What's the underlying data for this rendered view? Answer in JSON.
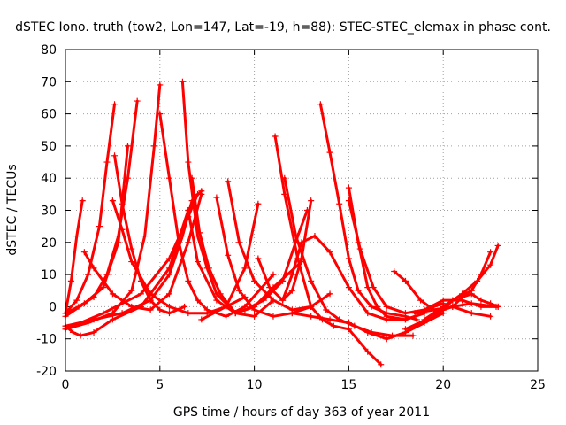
{
  "chart_data": {
    "type": "scatter",
    "title": "dSTEC Iono. truth (tow2, Lon=147, Lat=-19, h=88): STEC-STEC_elemax in phase cont.",
    "xlabel": "GPS time / hours of day 363 of year 2011",
    "ylabel": "dSTEC  / TECUs",
    "xlim": [
      0,
      25
    ],
    "ylim": [
      -20,
      80
    ],
    "xticks": [
      0,
      5,
      10,
      15,
      20,
      25
    ],
    "yticks": [
      -20,
      -10,
      0,
      10,
      20,
      30,
      40,
      50,
      60,
      70,
      80
    ],
    "grid": true,
    "marker": "plus",
    "color": "#ff0000",
    "series": [
      {
        "x": [
          0.0,
          0.3,
          0.6,
          0.9
        ],
        "y": [
          -2,
          8,
          22,
          33
        ]
      },
      {
        "x": [
          0.0,
          0.6,
          1.2,
          1.8,
          2.2,
          2.6
        ],
        "y": [
          -2,
          2,
          10,
          25,
          45,
          63
        ]
      },
      {
        "x": [
          0.0,
          0.7,
          1.5,
          2.2,
          2.8,
          3.3,
          3.8
        ],
        "y": [
          -2,
          0,
          3,
          10,
          22,
          40,
          64
        ]
      },
      {
        "x": [
          0.0,
          1.0,
          2.0,
          2.8,
          3.3
        ],
        "y": [
          -3,
          1,
          6,
          20,
          50
        ]
      },
      {
        "x": [
          0.0,
          1.2,
          2.5,
          3.5,
          4.2,
          4.7,
          5.0
        ],
        "y": [
          -7,
          -5,
          -2,
          5,
          22,
          50,
          69
        ]
      },
      {
        "x": [
          0.0,
          1.5,
          3.0,
          4.5,
          5.5,
          6.2,
          6.7,
          7.2
        ],
        "y": [
          -6,
          -4,
          -2,
          2,
          10,
          22,
          33,
          36
        ]
      },
      {
        "x": [
          0.0,
          2.0,
          4.0,
          5.5,
          6.5,
          7.0
        ],
        "y": [
          -7,
          -2,
          4,
          15,
          28,
          35
        ]
      },
      {
        "x": [
          0.0,
          0.4,
          0.8,
          1.5,
          2.5,
          4.0,
          5.5,
          6.5
        ],
        "y": [
          -6,
          -8,
          -9,
          -8,
          -4,
          0,
          12,
          30
        ]
      },
      {
        "x": [
          1.0,
          1.5,
          2.5,
          3.5,
          4.5,
          5.5,
          6.5,
          7.2
        ],
        "y": [
          17,
          12,
          4,
          0,
          -1,
          4,
          20,
          35
        ]
      },
      {
        "x": [
          2.6,
          3.0,
          3.5,
          4.0,
          4.5,
          5.0,
          5.5,
          6.3
        ],
        "y": [
          47,
          32,
          18,
          8,
          2,
          -1,
          -2,
          0
        ]
      },
      {
        "x": [
          2.5,
          3.0,
          3.5,
          4.5,
          5.5,
          6.5,
          7.5,
          8.5,
          9.5
        ],
        "y": [
          33,
          24,
          14,
          4,
          0,
          -2,
          -2,
          0,
          3
        ]
      },
      {
        "x": [
          5.0,
          5.5,
          6.0,
          6.5,
          7.0,
          7.5,
          8.5,
          9.5,
          11.0
        ],
        "y": [
          60,
          40,
          20,
          8,
          2,
          -1,
          -3,
          0,
          10
        ]
      },
      {
        "x": [
          6.2,
          6.5,
          7.0,
          7.5,
          8.0,
          9.0,
          10.0
        ],
        "y": [
          70,
          45,
          22,
          12,
          4,
          -2,
          0
        ]
      },
      {
        "x": [
          6.7,
          7.1,
          7.6,
          8.2,
          9.0,
          10.0,
          11.0
        ],
        "y": [
          40,
          23,
          12,
          4,
          -2,
          -3,
          2
        ]
      },
      {
        "x": [
          6.5,
          7.0,
          8.0,
          9.0,
          10.0,
          11.0,
          12.5
        ],
        "y": [
          30,
          14,
          2,
          -2,
          0,
          6,
          14
        ]
      },
      {
        "x": [
          8.0,
          8.6,
          9.2,
          10.0,
          11.0,
          12.0,
          13.0,
          14.0
        ],
        "y": [
          34,
          16,
          5,
          -1,
          -3,
          -2,
          0,
          4
        ]
      },
      {
        "x": [
          8.6,
          9.2,
          10.0,
          11.0,
          12.0,
          13.0
        ],
        "y": [
          39,
          20,
          8,
          2,
          -1,
          0
        ]
      },
      {
        "x": [
          7.2,
          8.5,
          9.5,
          10.2
        ],
        "y": [
          -4,
          0,
          12,
          32
        ]
      },
      {
        "x": [
          10.2,
          10.8,
          11.5,
          12.0,
          12.5,
          13.0
        ],
        "y": [
          15,
          6,
          2,
          5,
          15,
          33
        ]
      },
      {
        "x": [
          9.5,
          10.5,
          11.5,
          12.3,
          12.8
        ],
        "y": [
          -1,
          2,
          8,
          22,
          30
        ]
      },
      {
        "x": [
          11.1,
          11.6,
          12.3,
          13.0,
          13.6,
          14.2,
          15.0,
          16.0,
          16.7
        ],
        "y": [
          53,
          35,
          15,
          0,
          -4,
          -6,
          -7,
          -14,
          -18
        ]
      },
      {
        "x": [
          11.6,
          12.2,
          13.0,
          13.8,
          14.5,
          15.3,
          16.2,
          17.3,
          18.4
        ],
        "y": [
          40,
          22,
          8,
          -1,
          -4,
          -6,
          -8,
          -9,
          -9
        ]
      },
      {
        "x": [
          11.5,
          12.0,
          12.5,
          13.2,
          14.0,
          15.0,
          16.0,
          17.0,
          18.0,
          19.0
        ],
        "y": [
          2,
          10,
          20,
          22,
          17,
          6,
          -2,
          -4,
          -4,
          -2
        ]
      },
      {
        "x": [
          13.5,
          14.0,
          14.5,
          15.0,
          15.5,
          16.2,
          17.0,
          18.0,
          18.6
        ],
        "y": [
          63,
          48,
          32,
          15,
          5,
          0,
          -2,
          -3,
          -4
        ]
      },
      {
        "x": [
          15.0,
          15.5,
          16.0,
          16.5,
          17.0,
          18.0,
          19.0
        ],
        "y": [
          37,
          20,
          6,
          0,
          -3,
          -4,
          -2
        ]
      },
      {
        "x": [
          15.0,
          15.6,
          16.3,
          17.0,
          18.0,
          19.0,
          20.0
        ],
        "y": [
          33,
          18,
          6,
          0,
          -2,
          -1,
          1
        ]
      },
      {
        "x": [
          12.0,
          13.0,
          14.0,
          15.0,
          16.0,
          17.0,
          18.0,
          19.0,
          20.0
        ],
        "y": [
          -2,
          -3,
          -4,
          -5,
          -8,
          -10,
          -8,
          -5,
          -2
        ]
      },
      {
        "x": [
          17.0,
          18.0,
          19.0,
          20.0,
          20.5
        ],
        "y": [
          -10,
          -8,
          -5,
          -1,
          2
        ]
      },
      {
        "x": [
          17.4,
          18.0,
          18.8,
          19.5,
          20.5,
          21.5,
          22.5
        ],
        "y": [
          11,
          8,
          2,
          -1,
          0,
          -2,
          -3
        ]
      },
      {
        "x": [
          18.5,
          19.5,
          20.5,
          21.5,
          22.8
        ],
        "y": [
          -2,
          -1,
          0,
          1,
          0
        ]
      },
      {
        "x": [
          19.0,
          20.0,
          21.0,
          21.8,
          22.5,
          22.9
        ],
        "y": [
          -4,
          0,
          4,
          8,
          13,
          19
        ]
      },
      {
        "x": [
          18.0,
          19.5,
          20.5,
          21.5,
          22.0,
          22.5
        ],
        "y": [
          -7,
          -3,
          2,
          5,
          10,
          17
        ]
      },
      {
        "x": [
          19.0,
          20.0,
          21.0,
          22.0,
          22.9
        ],
        "y": [
          -1,
          2,
          2,
          0,
          0
        ]
      },
      {
        "x": [
          20.0,
          20.5,
          21.0,
          21.5,
          22.0,
          22.5,
          22.9
        ],
        "y": [
          -1,
          0,
          3,
          4,
          2,
          1,
          0
        ]
      }
    ]
  }
}
